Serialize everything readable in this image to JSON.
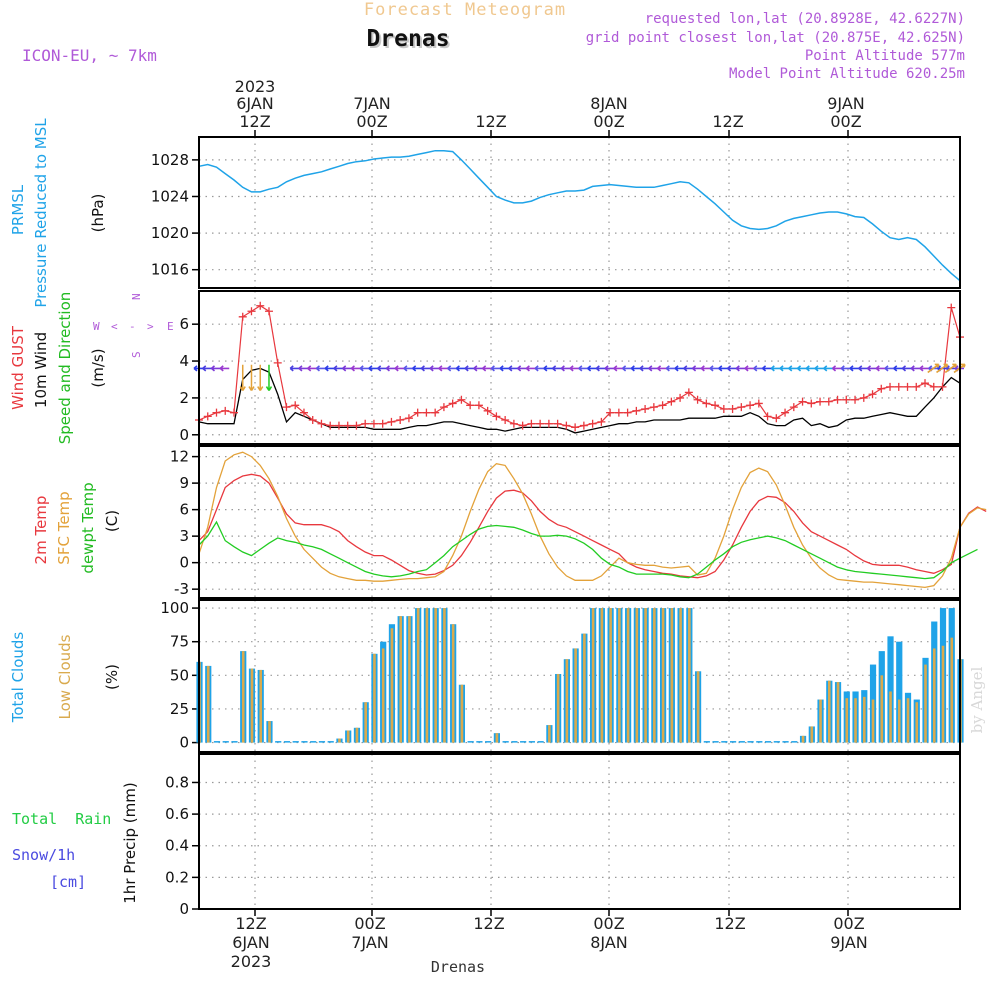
{
  "header": {
    "supertitle": "Forecast Meteogram",
    "station": "Drenas",
    "model": "ICON-EU, ~ 7km",
    "requested": "requested lon,lat (20.8928E, 42.6227N)",
    "gridpoint": "grid point closest lon,lat (20.875E, 42.625N)",
    "point_alt": "Point Altitude 577m",
    "model_alt": "Model Point Altitude 620.25m",
    "bottom_label": "Drenas",
    "watermark": "by Angel"
  },
  "top_time_axis": [
    {
      "lines": [
        "2023",
        "6JAN",
        "12Z"
      ]
    },
    {
      "lines": [
        "7JAN",
        "00Z"
      ]
    },
    {
      "lines": [
        "12Z"
      ]
    },
    {
      "lines": [
        "8JAN",
        "00Z"
      ]
    },
    {
      "lines": [
        "12Z"
      ]
    },
    {
      "lines": [
        "9JAN",
        "00Z"
      ]
    }
  ],
  "bottom_time_axis": [
    {
      "lines": [
        "12Z",
        "6JAN",
        "2023"
      ]
    },
    {
      "lines": [
        "00Z",
        "7JAN"
      ]
    },
    {
      "lines": [
        "12Z"
      ]
    },
    {
      "lines": [
        "00Z",
        "8JAN"
      ]
    },
    {
      "lines": [
        "12Z"
      ]
    },
    {
      "lines": [
        "00Z",
        "9JAN"
      ]
    }
  ],
  "panel_labels": {
    "pressure": {
      "l1": "PRMSL",
      "l2": "Pressure Reduced to MSL",
      "unit": "(hPa)"
    },
    "wind": {
      "gust": "Wind GUST",
      "w10": "10m Wind",
      "dir": "Speed and Direction",
      "unit": "(m/s)",
      "compass_w": "W",
      "compass_e": "E",
      "compass_n": "N",
      "compass_s": "S"
    },
    "temp": {
      "t2m": "2m Temp",
      "sfc": "SFC Temp",
      "dewpt": "dewpt Temp",
      "unit": "(C)"
    },
    "clouds": {
      "total": "Total Clouds",
      "low": "Low Clouds",
      "unit": "(%)"
    },
    "precip": {
      "rain": "Total  Rain",
      "snow": "Snow/1h",
      "cm": "[cm]",
      "axis": "1hr Precip (mm)"
    }
  },
  "colors": {
    "pressure": "#1fa3e8",
    "gust": "#e8383e",
    "wind10": "#000000",
    "t2m": "#e8383e",
    "sfc": "#e3a23a",
    "dewpt": "#22cc22",
    "total_clouds": "#1fa3e8",
    "low_clouds": "#d9aa4e",
    "purple": "#b05ad8",
    "title_orange": "#f0c890",
    "rain_green": "#22cc44",
    "snow_blue": "#4a4ae0"
  },
  "chart_data": [
    {
      "type": "line",
      "name": "pressure",
      "time_hours_from_06JAN00Z": [
        0,
        78
      ],
      "ylim": [
        1014,
        1030.5
      ],
      "yticks": [
        1016,
        1020,
        1024,
        1028
      ],
      "series": [
        {
          "name": "PRMSL",
          "values": [
            1027.3,
            1027.5,
            1027.2,
            1026.5,
            1025.8,
            1025.0,
            1024.5,
            1024.5,
            1024.8,
            1025.0,
            1025.6,
            1026.0,
            1026.3,
            1026.5,
            1026.7,
            1027.0,
            1027.3,
            1027.6,
            1027.8,
            1027.9,
            1028.1,
            1028.2,
            1028.3,
            1028.3,
            1028.4,
            1028.6,
            1028.8,
            1029.0,
            1029.0,
            1028.9,
            1028.0,
            1027.0,
            1026.0,
            1025.0,
            1024.0,
            1023.6,
            1023.3,
            1023.3,
            1023.5,
            1023.9,
            1024.2,
            1024.4,
            1024.6,
            1024.6,
            1024.7,
            1025.1,
            1025.2,
            1025.3,
            1025.2,
            1025.1,
            1025.0,
            1025.0,
            1025.0,
            1025.2,
            1025.4,
            1025.6,
            1025.5,
            1024.8,
            1024.0,
            1023.2,
            1022.3,
            1021.4,
            1020.8,
            1020.5,
            1020.4,
            1020.5,
            1020.8,
            1021.3,
            1021.6,
            1021.8,
            1022.0,
            1022.2,
            1022.3,
            1022.3,
            1022.1,
            1021.8,
            1021.7,
            1021.0,
            1020.2,
            1019.5,
            1019.3,
            1019.5,
            1019.3,
            1018.5,
            1017.5,
            1016.5,
            1015.6,
            1014.8
          ]
        }
      ]
    },
    {
      "type": "line",
      "name": "wind",
      "ylim": [
        -0.5,
        7.8
      ],
      "yticks": [
        0,
        2,
        4,
        6
      ],
      "series": [
        {
          "name": "Wind GUST",
          "values": [
            0.8,
            1.0,
            1.2,
            1.3,
            1.2,
            6.4,
            6.7,
            7.0,
            6.7,
            3.9,
            1.5,
            1.6,
            1.2,
            0.8,
            0.6,
            0.5,
            0.5,
            0.5,
            0.5,
            0.6,
            0.6,
            0.6,
            0.7,
            0.8,
            0.9,
            1.2,
            1.2,
            1.2,
            1.5,
            1.7,
            1.9,
            1.6,
            1.6,
            1.3,
            1.0,
            0.8,
            0.6,
            0.5,
            0.6,
            0.6,
            0.6,
            0.6,
            0.5,
            0.4,
            0.5,
            0.6,
            0.7,
            1.2,
            1.2,
            1.2,
            1.3,
            1.4,
            1.5,
            1.6,
            1.8,
            2.0,
            2.3,
            1.9,
            1.7,
            1.6,
            1.4,
            1.4,
            1.5,
            1.6,
            1.7,
            1.0,
            0.9,
            1.2,
            1.5,
            1.8,
            1.7,
            1.8,
            1.8,
            1.9,
            1.9,
            1.9,
            2.0,
            2.2,
            2.5,
            2.6,
            2.6,
            2.6,
            2.6,
            2.8,
            2.6,
            2.6,
            6.9,
            5.3
          ]
        },
        {
          "name": "10m Wind",
          "values": [
            0.7,
            0.6,
            0.6,
            0.6,
            0.6,
            3.0,
            3.5,
            3.6,
            3.4,
            2.2,
            0.7,
            1.2,
            1.0,
            0.8,
            0.6,
            0.4,
            0.4,
            0.4,
            0.4,
            0.4,
            0.3,
            0.3,
            0.3,
            0.3,
            0.4,
            0.5,
            0.5,
            0.6,
            0.7,
            0.7,
            0.6,
            0.5,
            0.4,
            0.3,
            0.3,
            0.2,
            0.3,
            0.4,
            0.4,
            0.4,
            0.4,
            0.4,
            0.3,
            0.1,
            0.2,
            0.3,
            0.4,
            0.5,
            0.6,
            0.6,
            0.7,
            0.7,
            0.8,
            0.8,
            0.8,
            0.8,
            0.9,
            0.9,
            0.9,
            0.9,
            1.0,
            1.0,
            1.0,
            1.2,
            1.0,
            0.6,
            0.5,
            0.5,
            0.8,
            0.9,
            0.5,
            0.6,
            0.4,
            0.5,
            0.8,
            0.9,
            0.9,
            1.0,
            1.1,
            1.2,
            1.1,
            1.0,
            1.0,
            1.5,
            2.0,
            2.6,
            3.1,
            2.8
          ]
        }
      ]
    },
    {
      "type": "line",
      "name": "temperature",
      "ylim": [
        -4,
        13.2
      ],
      "yticks": [
        -3,
        0,
        3,
        6,
        9,
        12
      ],
      "series": [
        {
          "name": "2m Temp",
          "values": [
            2.5,
            3.5,
            6.0,
            8.5,
            9.3,
            9.8,
            10.0,
            9.8,
            9.0,
            7.3,
            5.5,
            4.5,
            4.3,
            4.3,
            4.3,
            4.0,
            3.5,
            2.5,
            1.8,
            1.2,
            0.8,
            0.8,
            0.3,
            -0.3,
            -0.9,
            -1.2,
            -1.4,
            -1.3,
            -0.9,
            -0.3,
            0.8,
            2.3,
            4.0,
            5.8,
            7.3,
            8.1,
            8.2,
            7.9,
            7.0,
            5.8,
            4.9,
            4.3,
            4.0,
            3.5,
            3.0,
            2.5,
            2.0,
            1.5,
            1.0,
            0.0,
            -0.5,
            -0.8,
            -1.0,
            -1.2,
            -1.3,
            -1.5,
            -1.6,
            -1.7,
            -1.5,
            -1.0,
            0.3,
            2.0,
            4.0,
            5.8,
            7.0,
            7.5,
            7.4,
            6.8,
            5.8,
            4.5,
            3.5,
            3.0,
            2.5,
            2.0,
            1.5,
            0.8,
            0.2,
            -0.2,
            -0.3,
            -0.3,
            -0.3,
            -0.5,
            -0.8,
            -1.0,
            -1.2,
            -0.8,
            -0.2,
            4.0,
            5.6,
            6.3,
            5.8
          ]
        },
        {
          "name": "SFC Temp",
          "values": [
            1.0,
            4.0,
            8.5,
            11.5,
            12.2,
            12.5,
            12.0,
            11.0,
            9.5,
            7.5,
            5.0,
            3.0,
            1.5,
            0.5,
            -0.5,
            -1.2,
            -1.6,
            -1.8,
            -2.0,
            -2.0,
            -2.1,
            -2.1,
            -2.0,
            -1.9,
            -1.8,
            -1.8,
            -1.7,
            -1.6,
            -1.0,
            0.8,
            3.0,
            5.8,
            8.3,
            10.3,
            11.2,
            11.0,
            9.5,
            7.8,
            5.5,
            3.0,
            1.0,
            -0.5,
            -1.5,
            -2.0,
            -2.0,
            -2.0,
            -1.5,
            -0.5,
            0.5,
            0.0,
            -0.2,
            -0.3,
            -0.3,
            -0.5,
            -0.6,
            -0.5,
            -0.4,
            -1.4,
            -1.2,
            0.5,
            3.0,
            6.0,
            8.5,
            10.2,
            10.7,
            10.3,
            8.8,
            6.5,
            4.0,
            2.0,
            0.5,
            -0.6,
            -1.4,
            -1.9,
            -2.0,
            -2.1,
            -2.2,
            -2.2,
            -2.3,
            -2.4,
            -2.5,
            -2.6,
            -2.7,
            -2.8,
            -2.6,
            -1.5,
            0.5,
            4.0,
            5.5,
            6.2,
            6.0
          ]
        },
        {
          "name": "dewpt Temp",
          "values": [
            2.0,
            3.0,
            4.6,
            2.5,
            1.8,
            1.2,
            0.8,
            1.5,
            2.2,
            2.8,
            2.5,
            2.3,
            2.0,
            1.8,
            1.5,
            1.0,
            0.5,
            0.0,
            -0.5,
            -1.0,
            -1.3,
            -1.5,
            -1.6,
            -1.5,
            -1.3,
            -1.0,
            -0.8,
            0.0,
            0.8,
            1.8,
            2.5,
            3.2,
            3.8,
            4.1,
            4.2,
            4.1,
            4.0,
            3.7,
            3.3,
            3.0,
            3.0,
            3.1,
            3.0,
            2.7,
            2.2,
            1.5,
            0.5,
            -0.2,
            -0.5,
            -1.0,
            -1.3,
            -1.3,
            -1.3,
            -1.3,
            -1.4,
            -1.6,
            -1.7,
            -1.3,
            -0.5,
            0.3,
            1.0,
            1.8,
            2.3,
            2.6,
            2.8,
            3.0,
            2.8,
            2.5,
            2.0,
            1.5,
            1.0,
            0.5,
            0.0,
            -0.5,
            -0.8,
            -1.0,
            -1.1,
            -1.2,
            -1.3,
            -1.4,
            -1.5,
            -1.6,
            -1.7,
            -1.8,
            -1.7,
            -1.0,
            0.0,
            0.5,
            1.0,
            1.5
          ]
        }
      ]
    },
    {
      "type": "bar",
      "name": "clouds",
      "ylim": [
        -7,
        106
      ],
      "yticks": [
        0,
        25,
        50,
        75,
        100
      ],
      "series": [
        {
          "name": "Total Clouds",
          "values": [
            60,
            57,
            0,
            0,
            0,
            68,
            55,
            54,
            16,
            0,
            0,
            0,
            0,
            0,
            0,
            0,
            3,
            9,
            11,
            30,
            66,
            75,
            88,
            94,
            94,
            100,
            100,
            100,
            100,
            88,
            43,
            0,
            0,
            0,
            7,
            0,
            0,
            0,
            0,
            0,
            13,
            51,
            62,
            70,
            81,
            100,
            100,
            100,
            100,
            100,
            100,
            100,
            100,
            100,
            100,
            100,
            100,
            53,
            0,
            0,
            0,
            0,
            0,
            0,
            0,
            0,
            0,
            0,
            0,
            5,
            12,
            32,
            46,
            45,
            38,
            38,
            39,
            58,
            68,
            79,
            75,
            37,
            32,
            63,
            90,
            100,
            100,
            62
          ]
        },
        {
          "name": "Low Clouds",
          "values": [
            60,
            57,
            0,
            0,
            0,
            68,
            55,
            54,
            16,
            0,
            0,
            0,
            0,
            0,
            0,
            0,
            3,
            9,
            11,
            30,
            66,
            70,
            85,
            94,
            94,
            100,
            100,
            100,
            100,
            88,
            43,
            0,
            0,
            0,
            7,
            0,
            0,
            0,
            0,
            0,
            13,
            51,
            62,
            70,
            81,
            100,
            100,
            100,
            100,
            100,
            100,
            100,
            100,
            100,
            100,
            100,
            100,
            53,
            0,
            0,
            0,
            0,
            0,
            0,
            0,
            0,
            0,
            0,
            0,
            5,
            12,
            32,
            46,
            45,
            33,
            33,
            34,
            32,
            50,
            38,
            32,
            33,
            30,
            58,
            70,
            72,
            78,
            62
          ]
        }
      ]
    },
    {
      "type": "bar",
      "name": "precip",
      "ylim": [
        0,
        0.98
      ],
      "yticks": [
        0,
        0.2,
        0.4,
        0.6,
        0.8
      ],
      "series": [
        {
          "name": "1hr Precip",
          "values": [
            0,
            0,
            0,
            0,
            0,
            0,
            0,
            0,
            0,
            0,
            0,
            0,
            0,
            0,
            0,
            0,
            0,
            0,
            0,
            0,
            0,
            0,
            0,
            0,
            0,
            0,
            0,
            0,
            0,
            0,
            0,
            0,
            0,
            0,
            0,
            0,
            0,
            0,
            0,
            0,
            0,
            0,
            0,
            0,
            0,
            0,
            0,
            0,
            0,
            0,
            0,
            0,
            0,
            0,
            0,
            0,
            0,
            0,
            0,
            0,
            0,
            0,
            0,
            0,
            0,
            0,
            0,
            0,
            0,
            0,
            0,
            0,
            0,
            0,
            0,
            0,
            0,
            0,
            0,
            0,
            0,
            0,
            0,
            0,
            0,
            0,
            0,
            0
          ]
        }
      ]
    }
  ]
}
